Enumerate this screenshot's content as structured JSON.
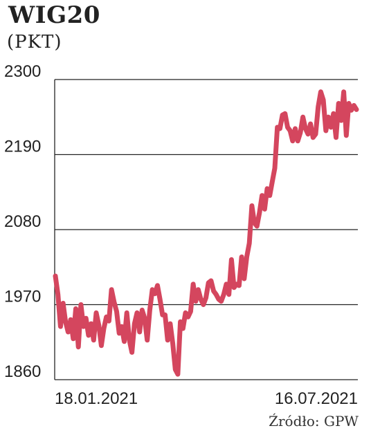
{
  "chart_data": {
    "type": "line",
    "title": "WIG20",
    "subtitle": "(PKT)",
    "source": "Źródło: GPW",
    "xlabel": "",
    "ylabel": "",
    "yticks": [
      1860,
      1970,
      2080,
      2190,
      2300
    ],
    "ylim": [
      1860,
      2300
    ],
    "x_tick_labels": [
      "18.01.2021",
      "16.07.2021"
    ],
    "grid": true,
    "line_color": "#d4465e",
    "series": [
      {
        "values": [
          2012,
          1985,
          1938,
          1972,
          1945,
          1930,
          1948,
          1920,
          1964,
          1908,
          1970,
          1938,
          1950,
          1925,
          1942,
          1918,
          1958,
          1940,
          1910,
          1935,
          1952,
          1946,
          1992,
          1974,
          1960,
          1928,
          1938,
          1916,
          1958,
          1918,
          1900,
          1942,
          1958,
          1930,
          1962,
          1950,
          1918,
          1962,
          1992,
          1986,
          1998,
          1978,
          1955,
          1955,
          1918,
          1942,
          1913,
          1875,
          1868,
          1945,
          1935,
          1958,
          1952,
          1960,
          2000,
          1975,
          1992,
          1978,
          1970,
          1980,
          2002,
          2005,
          1990,
          1985,
          1978,
          1975,
          1985,
          2000,
          1985,
          2036,
          1995,
          2000,
          1998,
          2040,
          2008,
          2040,
          2060,
          2115,
          2090,
          2085,
          2105,
          2130,
          2110,
          2140,
          2130,
          2150,
          2170,
          2230,
          2228,
          2248,
          2250,
          2230,
          2225,
          2210,
          2228,
          2210,
          2222,
          2245,
          2228,
          2220,
          2235,
          2215,
          2220,
          2260,
          2282,
          2270,
          2225,
          2245,
          2230,
          2250,
          2215,
          2265,
          2240,
          2282,
          2218,
          2265,
          2255,
          2262,
          2256
        ]
      }
    ]
  }
}
